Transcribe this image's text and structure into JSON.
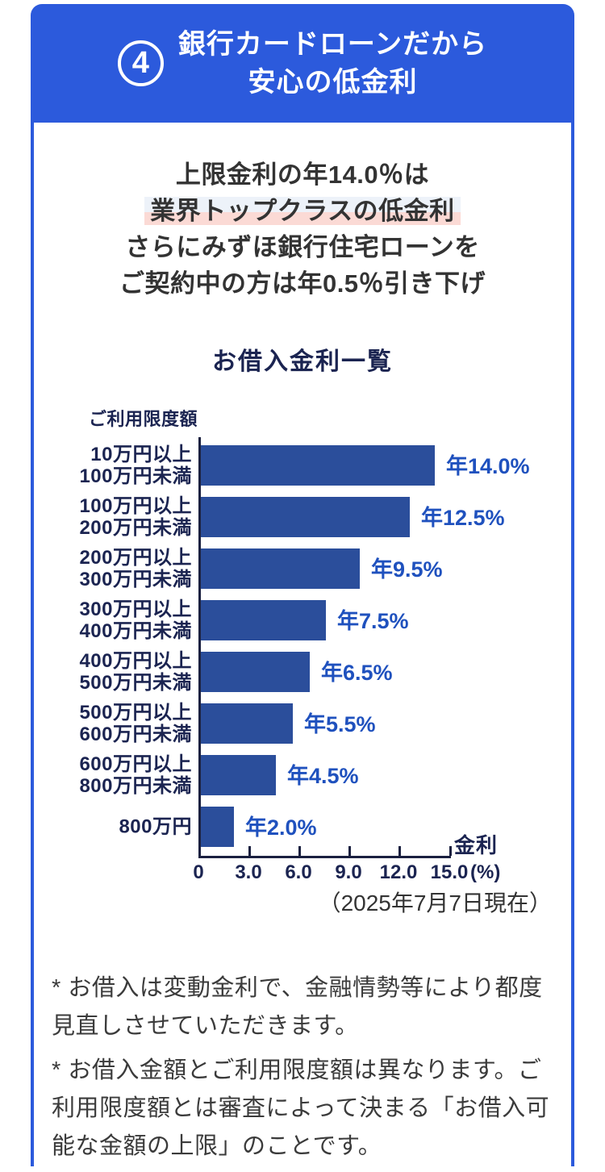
{
  "header": {
    "badge": "4",
    "title_line1": "銀行カードローンだから",
    "title_line2": "安心の低金利"
  },
  "message": {
    "line1": "上限金利の年14.0％は",
    "line2_highlight": "業界トップクラスの低金利",
    "line3": "さらにみずほ銀行住宅ローンを",
    "line4": "ご契約中の方は年0.5％引き下げ"
  },
  "chart_data": {
    "type": "bar",
    "orientation": "horizontal",
    "title": "お借入金利一覧",
    "y_axis_label": "ご利用限度額",
    "x_axis_title": "金利",
    "x_unit": "(%)",
    "xlim": [
      0,
      15
    ],
    "x_ticks": [
      {
        "value": 0,
        "label": "0"
      },
      {
        "value": 3,
        "label": "3.0"
      },
      {
        "value": 6,
        "label": "6.0"
      },
      {
        "value": 9,
        "label": "9.0"
      },
      {
        "value": 12,
        "label": "12.0"
      },
      {
        "value": 15,
        "label": "15.0"
      }
    ],
    "bars": [
      {
        "category_lines": [
          "10万円以上",
          "100万円未満"
        ],
        "value": 14.0,
        "value_label": "年14.0%"
      },
      {
        "category_lines": [
          "100万円以上",
          "200万円未満"
        ],
        "value": 12.5,
        "value_label": "年12.5%"
      },
      {
        "category_lines": [
          "200万円以上",
          "300万円未満"
        ],
        "value": 9.5,
        "value_label": "年9.5%"
      },
      {
        "category_lines": [
          "300万円以上",
          "400万円未満"
        ],
        "value": 7.5,
        "value_label": "年7.5%"
      },
      {
        "category_lines": [
          "400万円以上",
          "500万円未満"
        ],
        "value": 6.5,
        "value_label": "年6.5%"
      },
      {
        "category_lines": [
          "500万円以上",
          "600万円未満"
        ],
        "value": 5.5,
        "value_label": "年5.5%"
      },
      {
        "category_lines": [
          "600万円以上",
          "800万円未満"
        ],
        "value": 4.5,
        "value_label": "年4.5%"
      },
      {
        "category_lines": [
          "800万円"
        ],
        "value": 2.0,
        "value_label": "年2.0%"
      }
    ],
    "as_of": "（2025年7月7日現在）"
  },
  "footnotes": [
    "* お借入は変動金利で、金融情勢等により都度見直しさせていただきます。",
    "* お借入金額とご利用限度額は異なります。ご利用限度額とは審査によって決まる「お借入可能な金額の上限」のことです。"
  ],
  "colors": {
    "primary_blue": "#2C5ADC",
    "bar_blue": "#2B4E9B",
    "value_blue": "#1F51BE",
    "navy": "#1B2451",
    "axis": "#1A2040",
    "highlight_top": "#EDF2F9",
    "highlight_bottom": "#FBDAD5"
  }
}
